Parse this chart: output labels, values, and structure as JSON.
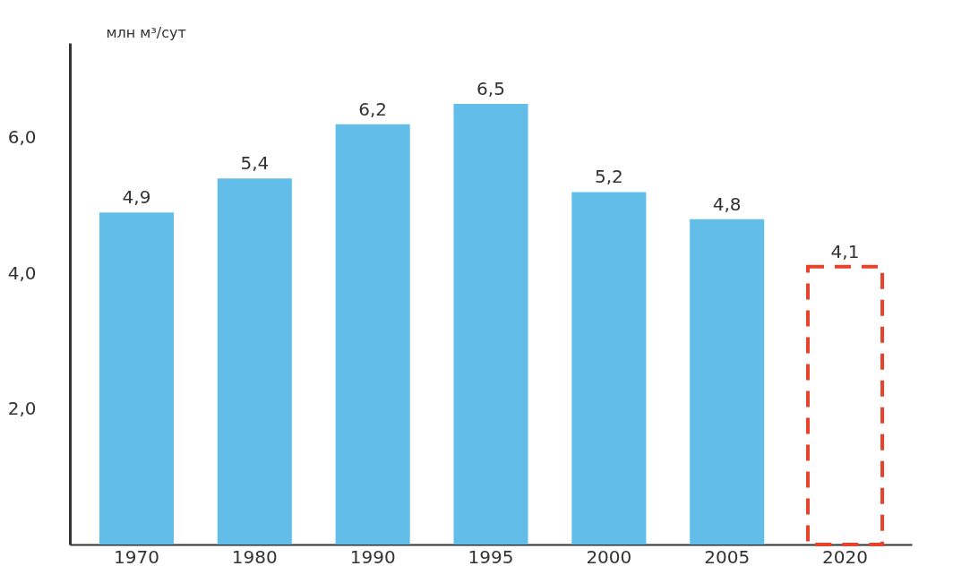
{
  "chart_data": {
    "type": "bar",
    "ylabel": "млн м³/сут",
    "categories": [
      "1970",
      "1980",
      "1990",
      "1995",
      "2000",
      "2005",
      "2020"
    ],
    "series": [
      {
        "color": "#63bde9",
        "values": [
          4.9,
          5.4,
          6.2,
          6.5,
          5.2,
          4.8,
          null
        ],
        "value_labels": [
          "4,9",
          "5,4",
          "6,2",
          "6,5",
          "5,2",
          "4,8",
          null
        ]
      },
      {
        "color": "#e8432a",
        "line_style": "dashed",
        "values": [
          null,
          null,
          null,
          null,
          null,
          null,
          4.1
        ],
        "value_labels": [
          null,
          null,
          null,
          null,
          null,
          null,
          "4,1"
        ]
      }
    ],
    "ylim": [
      0,
      7.4
    ],
    "yticks": [
      {
        "value": 2,
        "label": "2,0"
      },
      {
        "value": 4,
        "label": "4,0"
      },
      {
        "value": 6,
        "label": "6,0"
      }
    ],
    "grid": false
  }
}
